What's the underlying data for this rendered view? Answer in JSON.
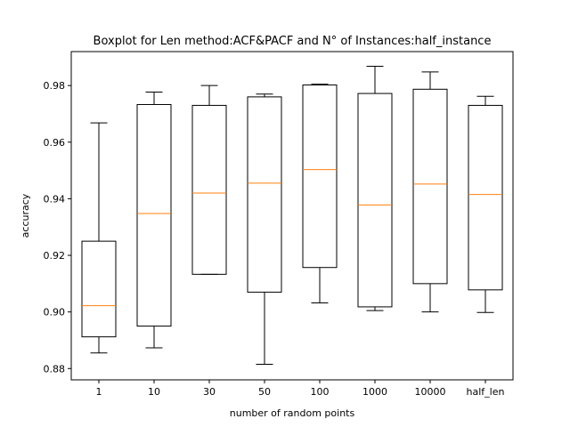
{
  "chart_data": {
    "type": "box",
    "title": "Boxplot for Len method:ACF&PACF and N° of Instances:half_instance",
    "xlabel": "number of random points",
    "ylabel": "accuracy",
    "ylim": [
      0.876,
      0.992
    ],
    "yticks": [
      0.88,
      0.9,
      0.92,
      0.94,
      0.96,
      0.98
    ],
    "ytick_labels": [
      "0.88",
      "0.90",
      "0.92",
      "0.94",
      "0.96",
      "0.98"
    ],
    "categories": [
      "1",
      "10",
      "30",
      "50",
      "100",
      "1000",
      "10000",
      "half_len"
    ],
    "boxes": [
      {
        "whislo": 0.8855,
        "q1": 0.8912,
        "med": 0.9022,
        "q3": 0.925,
        "whishi": 0.9668
      },
      {
        "whislo": 0.8873,
        "q1": 0.895,
        "med": 0.9348,
        "q3": 0.9733,
        "whishi": 0.9777
      },
      {
        "whislo": 0.9133,
        "q1": 0.9133,
        "med": 0.942,
        "q3": 0.973,
        "whishi": 0.98
      },
      {
        "whislo": 0.8815,
        "q1": 0.907,
        "med": 0.9455,
        "q3": 0.976,
        "whishi": 0.977
      },
      {
        "whislo": 0.9032,
        "q1": 0.9157,
        "med": 0.9503,
        "q3": 0.9802,
        "whishi": 0.9805
      },
      {
        "whislo": 0.9005,
        "q1": 0.9018,
        "med": 0.9378,
        "q3": 0.9772,
        "whishi": 0.9868
      },
      {
        "whislo": 0.9,
        "q1": 0.91,
        "med": 0.9452,
        "q3": 0.9787,
        "whishi": 0.9848
      },
      {
        "whislo": 0.8998,
        "q1": 0.9078,
        "med": 0.9415,
        "q3": 0.973,
        "whishi": 0.9762
      }
    ],
    "grid": false,
    "legend": "none",
    "colors": {
      "box": "#000000",
      "median": "#ff7f0e"
    }
  }
}
